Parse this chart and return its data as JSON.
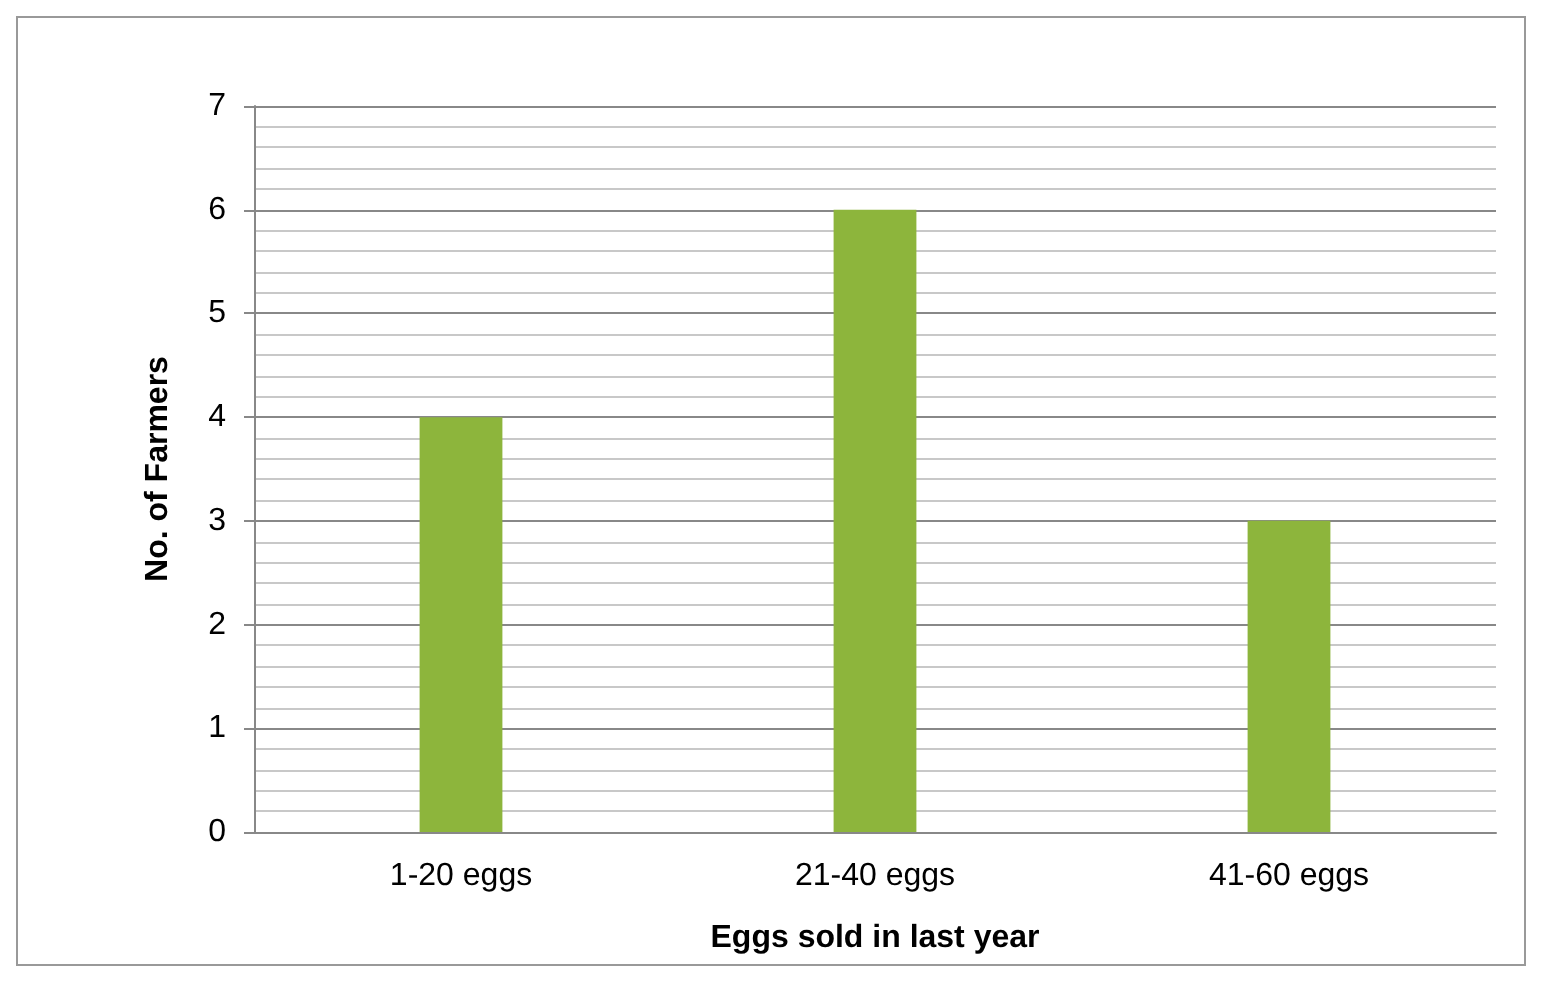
{
  "chart_data": {
    "type": "bar",
    "xlabel": "Eggs sold in last year",
    "ylabel": "No. of Farmers",
    "categories": [
      "1-20 eggs",
      "21-40 eggs",
      "41-60 eggs"
    ],
    "values": [
      4,
      6,
      3
    ],
    "color": "#8db53c",
    "ylim": [
      0,
      7
    ],
    "yticks": [
      0,
      1,
      2,
      3,
      4,
      5,
      6,
      7
    ],
    "grid": "y"
  }
}
